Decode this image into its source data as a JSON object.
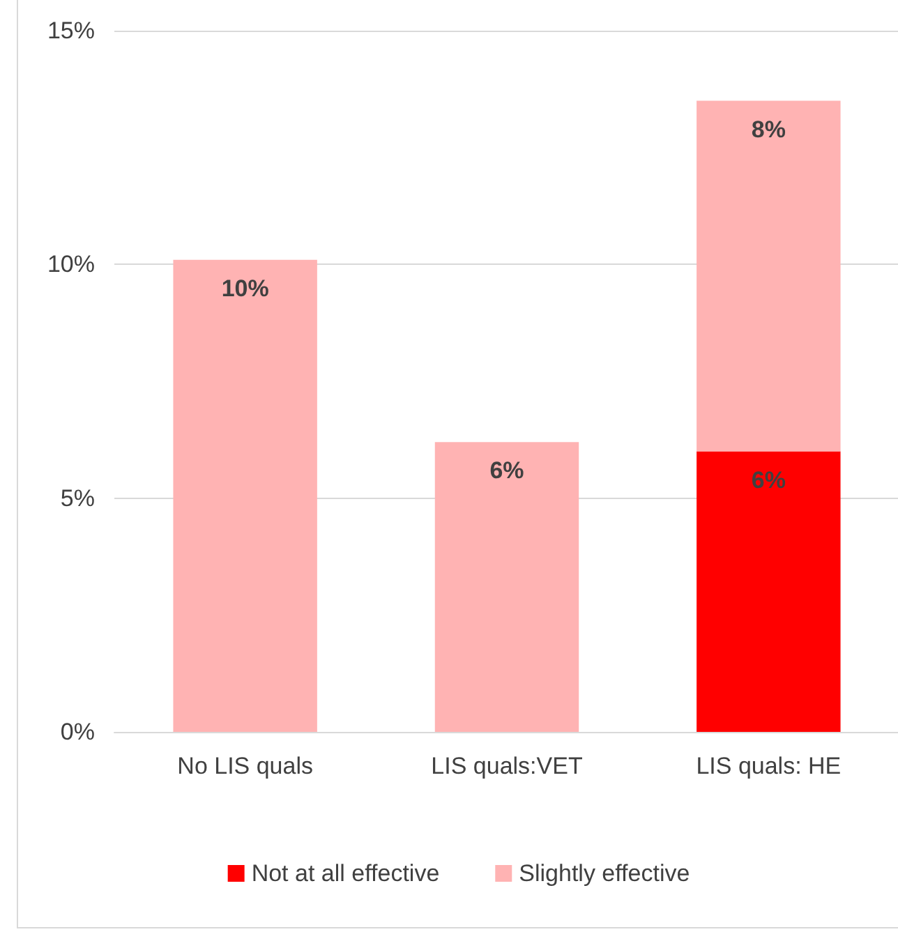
{
  "chart_data": {
    "type": "bar",
    "stacked": true,
    "categories": [
      "No LIS quals",
      "LIS quals:VET",
      "LIS quals: HE"
    ],
    "series": [
      {
        "name": "Not at all effective",
        "color": "#ff0000",
        "values": [
          null,
          null,
          6.0
        ],
        "value_labels": [
          null,
          null,
          "6%"
        ]
      },
      {
        "name": "Slightly effective",
        "color": "#ffb3b3",
        "values": [
          10.1,
          6.2,
          7.5
        ],
        "value_labels": [
          "10%",
          "6%",
          "8%"
        ]
      }
    ],
    "ylim": [
      0,
      15
    ],
    "yticks": [
      {
        "value": 0,
        "label": "0%"
      },
      {
        "value": 5,
        "label": "5%"
      },
      {
        "value": 10,
        "label": "10%"
      },
      {
        "value": 15,
        "label": "15%"
      }
    ],
    "grid": "y",
    "legend": "bottom"
  }
}
